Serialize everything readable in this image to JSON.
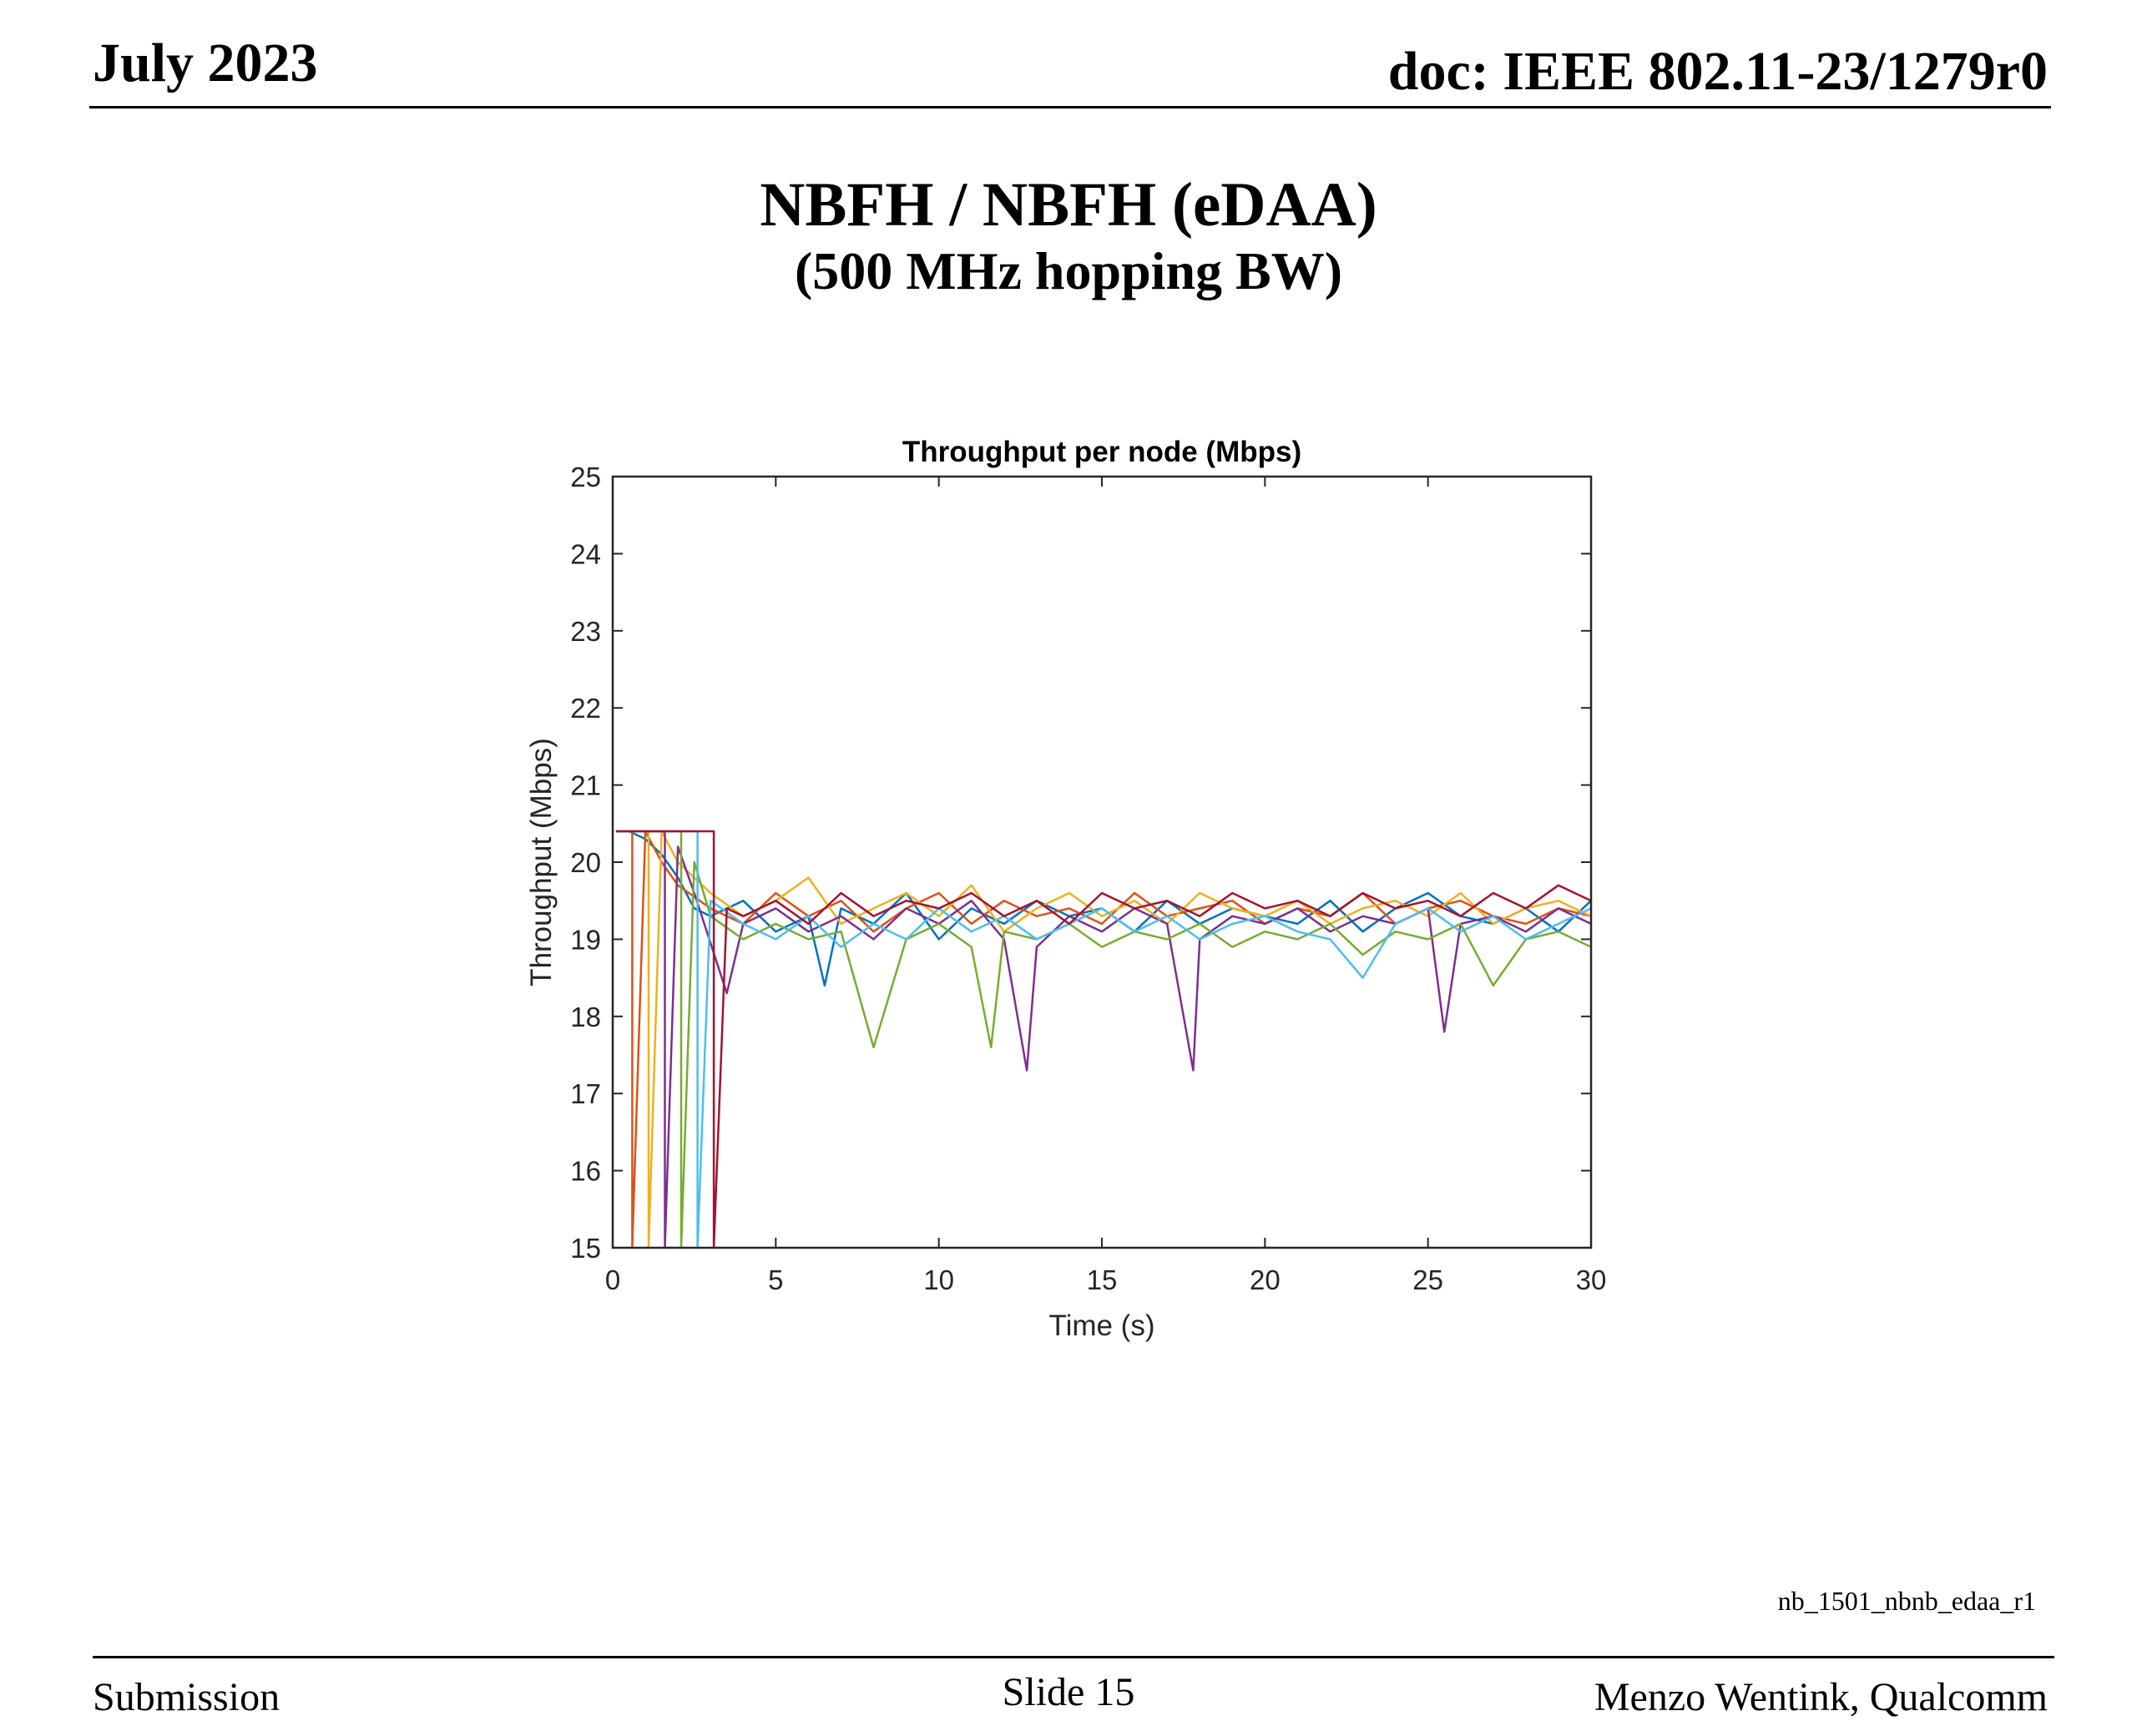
{
  "header": {
    "date": "July 2023",
    "doc": "doc: IEEE 802.11-23/1279r0"
  },
  "slide": {
    "title": "NBFH / NBFH (eDAA)",
    "subtitle": "(500 MHz hopping BW)",
    "footnote": "nb_1501_nbnb_edaa_r1"
  },
  "footer": {
    "left": "Submission",
    "center": "Slide 15",
    "right": "Menzo Wentink, Qualcomm"
  },
  "chart_data": {
    "type": "line",
    "title": "Throughput per node (Mbps)",
    "xlabel": "Time (s)",
    "ylabel": "Throughput (Mbps)",
    "xlim": [
      0,
      30
    ],
    "ylim": [
      15,
      25
    ],
    "xticks": [
      0,
      5,
      10,
      15,
      20,
      25,
      30
    ],
    "yticks": [
      15,
      16,
      17,
      18,
      19,
      20,
      21,
      22,
      23,
      24,
      25
    ],
    "grid": false,
    "legend": "none",
    "series": [
      {
        "color": "#0072BD",
        "x": [
          0.1,
          0.5,
          1.0,
          1.5,
          2.0,
          2.5,
          3,
          4,
          5,
          6,
          6.5,
          7,
          8,
          9,
          10,
          11,
          12,
          13,
          14,
          15,
          16,
          17,
          18,
          19,
          20,
          21,
          22,
          23,
          24,
          25,
          26,
          27,
          28,
          29,
          30
        ],
        "values": [
          20.4,
          20.4,
          20.3,
          20.1,
          19.8,
          19.4,
          19.3,
          19.5,
          19.1,
          19.3,
          18.4,
          19.4,
          19.2,
          19.6,
          19.0,
          19.4,
          19.2,
          19.5,
          19.3,
          19.4,
          19.1,
          19.5,
          19.2,
          19.4,
          19.3,
          19.2,
          19.5,
          19.1,
          19.4,
          19.6,
          19.3,
          19.2,
          19.4,
          19.1,
          19.5
        ]
      },
      {
        "color": "#D95319",
        "x": [
          0.1,
          0.6,
          0.6,
          1.0,
          1.5,
          2.0,
          3,
          4,
          5,
          6,
          7,
          8,
          9,
          10,
          11,
          12,
          13,
          14,
          15,
          16,
          17,
          18,
          19,
          20,
          21,
          22,
          23,
          24,
          25,
          26,
          27,
          28,
          29,
          30
        ],
        "values": [
          20.4,
          20.4,
          15.0,
          20.4,
          20.0,
          19.7,
          19.4,
          19.2,
          19.6,
          19.3,
          19.5,
          19.1,
          19.4,
          19.6,
          19.2,
          19.5,
          19.3,
          19.4,
          19.2,
          19.6,
          19.3,
          19.4,
          19.5,
          19.2,
          19.4,
          19.3,
          19.6,
          19.2,
          19.4,
          19.5,
          19.3,
          19.2,
          19.4,
          19.3
        ]
      },
      {
        "color": "#EDB120",
        "x": [
          0.1,
          1.1,
          1.1,
          1.5,
          2.0,
          3,
          4,
          5,
          6,
          7,
          8,
          9,
          10,
          11,
          12,
          13,
          14,
          15,
          16,
          17,
          18,
          19,
          20,
          21,
          22,
          23,
          24,
          25,
          26,
          27,
          28,
          29,
          30
        ],
        "values": [
          20.4,
          20.4,
          15.0,
          20.4,
          20.0,
          19.6,
          19.3,
          19.5,
          19.8,
          19.2,
          19.4,
          19.6,
          19.3,
          19.7,
          19.1,
          19.4,
          19.6,
          19.3,
          19.5,
          19.2,
          19.6,
          19.4,
          19.3,
          19.5,
          19.2,
          19.4,
          19.5,
          19.3,
          19.6,
          19.2,
          19.4,
          19.5,
          19.3
        ]
      },
      {
        "color": "#7E2F8E",
        "x": [
          0.1,
          1.6,
          1.6,
          2.0,
          2.5,
          3.5,
          4,
          5,
          6,
          7,
          8,
          9,
          10,
          11,
          12,
          12.7,
          13,
          14,
          15,
          16,
          17,
          17.8,
          18,
          19,
          20,
          21,
          22,
          23,
          24,
          25,
          25.5,
          26,
          27,
          28,
          29,
          30
        ],
        "values": [
          20.4,
          20.4,
          15.0,
          20.2,
          19.6,
          18.3,
          19.2,
          19.4,
          19.1,
          19.3,
          19.0,
          19.4,
          19.2,
          19.5,
          19.0,
          17.3,
          18.9,
          19.3,
          19.1,
          19.4,
          19.2,
          17.3,
          19.0,
          19.3,
          19.2,
          19.4,
          19.1,
          19.3,
          19.2,
          19.4,
          17.8,
          19.2,
          19.3,
          19.1,
          19.4,
          19.2
        ]
      },
      {
        "color": "#77AC30",
        "x": [
          0.1,
          2.1,
          2.1,
          2.5,
          3,
          4,
          5,
          6,
          7,
          8,
          9,
          10,
          11,
          11.6,
          12,
          13,
          14,
          15,
          16,
          17,
          18,
          19,
          20,
          21,
          22,
          23,
          24,
          25,
          26,
          27,
          28,
          29,
          30
        ],
        "values": [
          20.4,
          20.4,
          15.0,
          20.0,
          19.3,
          19.0,
          19.2,
          19.0,
          19.1,
          17.6,
          19.0,
          19.2,
          18.9,
          17.6,
          19.1,
          19.0,
          19.2,
          18.9,
          19.1,
          19.0,
          19.2,
          18.9,
          19.1,
          19.0,
          19.2,
          18.8,
          19.1,
          19.0,
          19.2,
          18.4,
          19.0,
          19.1,
          18.9
        ]
      },
      {
        "color": "#4DBEEE",
        "x": [
          0.1,
          2.6,
          2.6,
          3,
          4,
          5,
          6,
          7,
          8,
          9,
          10,
          11,
          12,
          13,
          14,
          15,
          16,
          17,
          18,
          19,
          20,
          21,
          22,
          23,
          24,
          25,
          26,
          27,
          28,
          29,
          30
        ],
        "values": [
          20.4,
          20.4,
          15.0,
          19.5,
          19.2,
          19.0,
          19.3,
          18.9,
          19.2,
          19.0,
          19.4,
          19.1,
          19.3,
          19.0,
          19.2,
          19.4,
          19.1,
          19.3,
          19.0,
          19.2,
          19.3,
          19.1,
          19.0,
          18.5,
          19.2,
          19.4,
          19.1,
          19.3,
          19.0,
          19.2,
          19.4
        ]
      },
      {
        "color": "#A2142F",
        "x": [
          0.1,
          3.1,
          3.1,
          3.5,
          4,
          5,
          6,
          7,
          8,
          9,
          10,
          11,
          12,
          13,
          14,
          15,
          16,
          17,
          18,
          19,
          20,
          21,
          22,
          23,
          24,
          25,
          26,
          27,
          28,
          29,
          30
        ],
        "values": [
          20.4,
          20.4,
          15.0,
          19.4,
          19.3,
          19.5,
          19.2,
          19.6,
          19.3,
          19.5,
          19.4,
          19.6,
          19.3,
          19.5,
          19.2,
          19.6,
          19.4,
          19.5,
          19.3,
          19.6,
          19.4,
          19.5,
          19.3,
          19.6,
          19.4,
          19.5,
          19.3,
          19.6,
          19.4,
          19.7,
          19.5
        ]
      }
    ]
  }
}
